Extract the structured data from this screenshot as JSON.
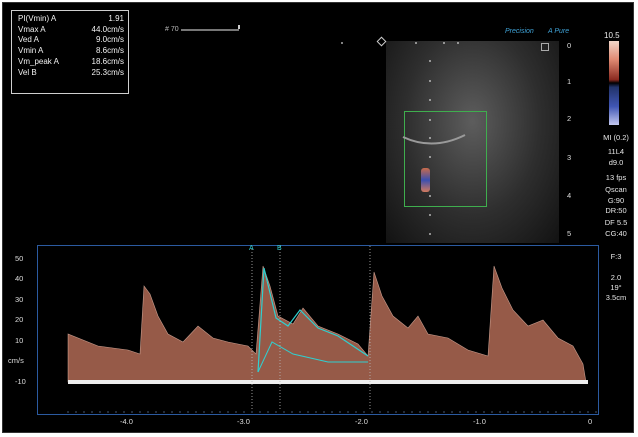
{
  "measurements": [
    {
      "label": "PI(Vmin) A",
      "value": "1.91"
    },
    {
      "label": "Vmax A",
      "value": "44.0cm/s"
    },
    {
      "label": "Ved A",
      "value": "9.0cm/s"
    },
    {
      "label": "Vmin A",
      "value": "8.6cm/s"
    },
    {
      "label": "Vm_peak A",
      "value": "18.6cm/s"
    },
    {
      "label": "Vel B",
      "value": "25.3cm/s"
    }
  ],
  "frame_label": "# 70",
  "brand": {
    "left": "Precision",
    "right": "A Pure"
  },
  "depth_ticks": [
    "0",
    "1",
    "2",
    "3",
    "4",
    "5"
  ],
  "color_scale": {
    "top": "10.5"
  },
  "side_params": [
    "MI (0.2)",
    "11L4",
    "d9.0",
    "13 fps",
    "Qscan",
    "G:90",
    "DR:50",
    "DF 5.5",
    "CG:40",
    "F:3",
    "2.0",
    "19°",
    "3.5cm"
  ],
  "cursor_labels": {
    "a": "A",
    "b": "B"
  },
  "spectral": {
    "y_ticks": [
      "50",
      "40",
      "30",
      "20",
      "10",
      "cm/s",
      "-10"
    ],
    "x_ticks": [
      "-4.0",
      "-3.0",
      "-2.0",
      "-1.0",
      "0"
    ]
  },
  "colors": {
    "accent": "#3fa2d6",
    "roi": "#3fae4e",
    "trace": "#2fd0d0",
    "spectrum": "#f2b9a3"
  }
}
